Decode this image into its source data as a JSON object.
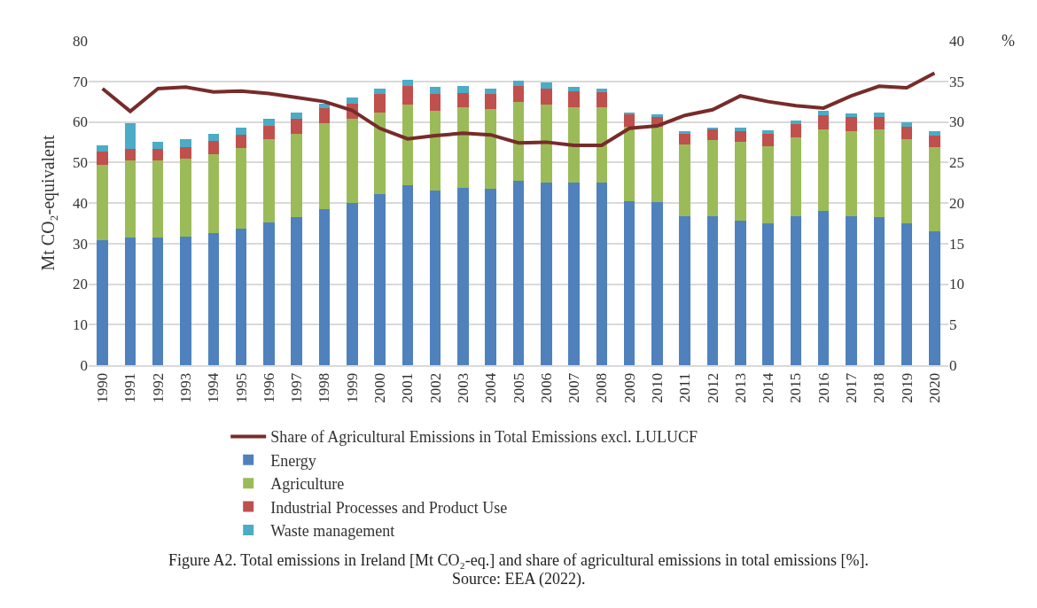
{
  "chart_data": {
    "type": "bar",
    "stacked": true,
    "ylabel": "Mt CO₂-equivalent",
    "y2label": "%",
    "categories": [
      "1990",
      "1991",
      "1992",
      "1993",
      "1994",
      "1995",
      "1996",
      "1997",
      "1998",
      "1999",
      "2000",
      "2001",
      "2002",
      "2003",
      "2004",
      "2005",
      "2006",
      "2007",
      "2008",
      "2009",
      "2010",
      "2011",
      "2012",
      "2013",
      "2014",
      "2015",
      "2016",
      "2017",
      "2018",
      "2019",
      "2020"
    ],
    "series": [
      {
        "name": "Energy",
        "color": "#4f81bd",
        "values": [
          30.8,
          31.5,
          31.5,
          31.8,
          32.6,
          33.6,
          35.3,
          36.4,
          38.5,
          39.9,
          42.2,
          44.4,
          43.1,
          43.8,
          43.6,
          45.5,
          45.1,
          45.0,
          45.1,
          40.5,
          40.3,
          36.7,
          36.7,
          35.6,
          35.0,
          36.7,
          38.1,
          36.7,
          36.6,
          35.0,
          32.9
        ]
      },
      {
        "name": "Agriculture",
        "color": "#9bbb59",
        "values": [
          18.6,
          18.9,
          18.9,
          19.1,
          19.5,
          20.0,
          20.4,
          20.6,
          21.2,
          20.9,
          20.1,
          19.8,
          19.6,
          19.9,
          19.6,
          19.4,
          19.2,
          18.7,
          18.5,
          18.4,
          18.4,
          17.7,
          18.8,
          19.5,
          19.0,
          19.5,
          20.0,
          20.9,
          21.5,
          20.7,
          20.9
        ]
      },
      {
        "name": "Industrial Processes and Product Use",
        "color": "#c0504d",
        "values": [
          3.3,
          3.0,
          3.0,
          2.9,
          3.2,
          3.2,
          3.4,
          3.8,
          3.7,
          3.7,
          4.6,
          4.6,
          4.1,
          3.5,
          3.6,
          4.0,
          4.0,
          3.9,
          3.8,
          2.9,
          2.6,
          2.6,
          2.6,
          2.7,
          3.0,
          3.2,
          3.6,
          3.5,
          3.2,
          3.2,
          2.9
        ]
      },
      {
        "name": "Waste management",
        "color": "#4bacc6",
        "values": [
          1.5,
          6.2,
          1.7,
          1.9,
          1.8,
          1.8,
          1.7,
          1.5,
          1.0,
          1.6,
          1.4,
          1.6,
          1.8,
          1.7,
          1.5,
          1.3,
          1.4,
          1.0,
          0.7,
          0.5,
          0.6,
          0.7,
          0.5,
          0.7,
          0.9,
          1.0,
          1.0,
          1.0,
          1.0,
          0.9,
          0.9
        ]
      },
      {
        "name": "Share of Agricultural Emissions in Total Emissions excl. LULUCF",
        "type": "line",
        "axis": "y2",
        "color": "#772c2a",
        "marker": "none",
        "values": [
          34.1,
          31.3,
          34.1,
          34.3,
          33.7,
          33.8,
          33.5,
          33.0,
          32.5,
          31.4,
          29.2,
          27.9,
          28.3,
          28.6,
          28.4,
          27.4,
          27.5,
          27.1,
          27.1,
          29.2,
          29.5,
          30.8,
          31.5,
          33.2,
          32.5,
          32.0,
          31.7,
          33.2,
          34.4,
          34.2,
          36.0
        ]
      }
    ],
    "ylim": [
      0,
      80
    ],
    "yticks": [
      0,
      10,
      20,
      30,
      40,
      50,
      60,
      70,
      80
    ],
    "y2lim": [
      0,
      40
    ],
    "y2ticks": [
      0,
      5,
      10,
      15,
      20,
      25,
      30,
      35,
      40
    ],
    "grid": "y",
    "legend": "bottom",
    "annotations": [
      "Figure A2. Total emissions in Ireland [Mt CO₂-eq.] and share of agricultural emissions in total emissions [%].",
      "Source: EEA (2022)."
    ]
  }
}
